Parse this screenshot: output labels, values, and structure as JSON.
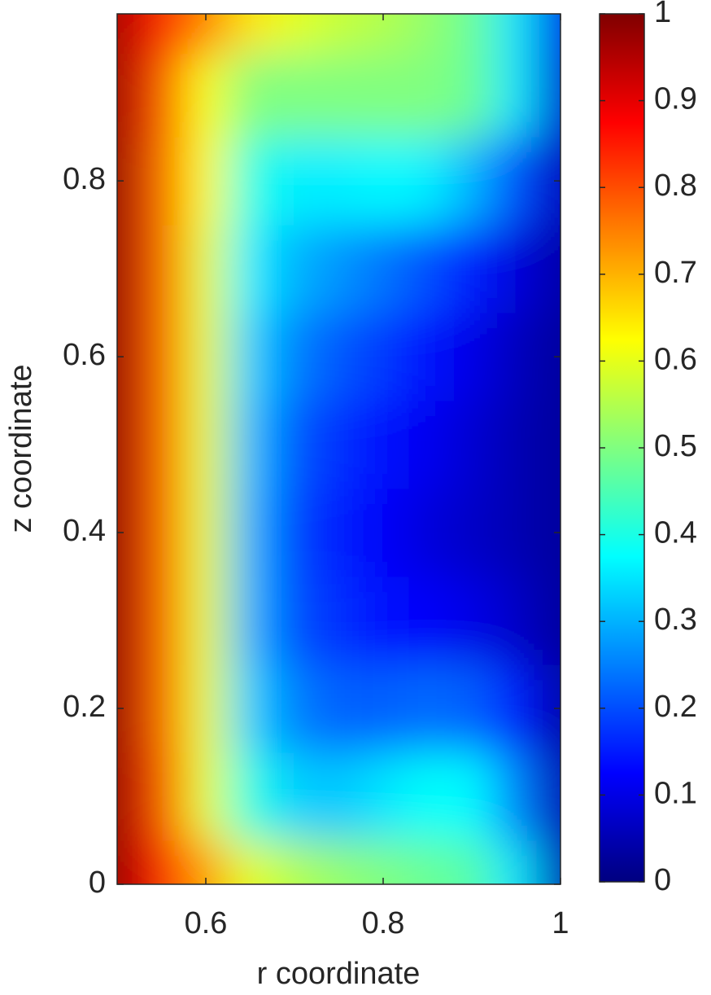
{
  "chart_data": {
    "type": "heatmap",
    "colormap": "jet",
    "xlabel": "r coordinate",
    "ylabel": "z coordinate",
    "x": [
      0.5,
      0.55,
      0.6,
      0.65,
      0.7,
      0.75,
      0.8,
      0.85,
      0.9,
      0.95,
      1.0
    ],
    "y": [
      0,
      0.1,
      0.2,
      0.3,
      0.4,
      0.5,
      0.6,
      0.7,
      0.8,
      0.9,
      0.99
    ],
    "values": [
      [
        0.98,
        0.85,
        0.72,
        0.6,
        0.55,
        0.52,
        0.5,
        0.48,
        0.46,
        0.35,
        0.05
      ],
      [
        0.98,
        0.8,
        0.6,
        0.4,
        0.33,
        0.32,
        0.35,
        0.38,
        0.37,
        0.25,
        0.05
      ],
      [
        0.98,
        0.78,
        0.6,
        0.33,
        0.25,
        0.22,
        0.22,
        0.23,
        0.22,
        0.15,
        0.04
      ],
      [
        0.98,
        0.78,
        0.6,
        0.3,
        0.2,
        0.17,
        0.14,
        0.12,
        0.1,
        0.07,
        0.03
      ],
      [
        0.98,
        0.78,
        0.6,
        0.3,
        0.19,
        0.15,
        0.12,
        0.09,
        0.07,
        0.05,
        0.03
      ],
      [
        0.98,
        0.78,
        0.6,
        0.31,
        0.21,
        0.17,
        0.14,
        0.11,
        0.08,
        0.05,
        0.03
      ],
      [
        0.98,
        0.78,
        0.6,
        0.33,
        0.25,
        0.21,
        0.18,
        0.14,
        0.1,
        0.06,
        0.03
      ],
      [
        0.98,
        0.78,
        0.6,
        0.36,
        0.3,
        0.27,
        0.24,
        0.2,
        0.15,
        0.09,
        0.04
      ],
      [
        0.98,
        0.78,
        0.62,
        0.4,
        0.36,
        0.36,
        0.37,
        0.36,
        0.3,
        0.2,
        0.06
      ],
      [
        0.97,
        0.8,
        0.62,
        0.5,
        0.5,
        0.5,
        0.5,
        0.5,
        0.48,
        0.35,
        0.08
      ],
      [
        0.96,
        0.85,
        0.75,
        0.65,
        0.6,
        0.57,
        0.55,
        0.52,
        0.48,
        0.35,
        0.1
      ]
    ],
    "xlim": [
      0.5,
      1
    ],
    "ylim": [
      0,
      0.99
    ],
    "xticks": [
      0.6,
      0.8,
      1
    ],
    "yticks": [
      0,
      0.2,
      0.4,
      0.6,
      0.8
    ],
    "clim": [
      0,
      1
    ],
    "cticks": [
      0,
      0.1,
      0.2,
      0.3,
      0.4,
      0.5,
      0.6,
      0.7,
      0.8,
      0.9,
      1
    ]
  }
}
